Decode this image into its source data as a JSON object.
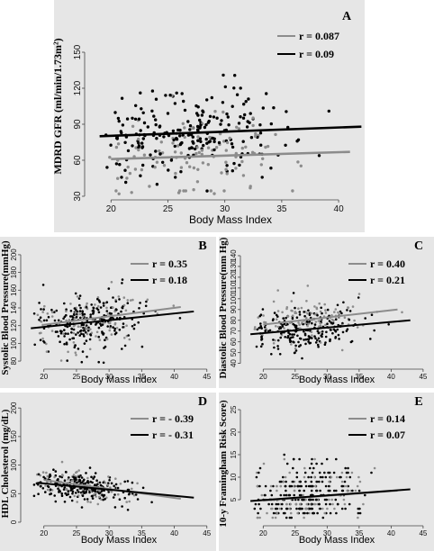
{
  "chart_data": [
    {
      "type": "scatter",
      "panel": "A",
      "ylabel": "MDRD GFR (ml/min/1.73m²)",
      "xlabel": "Body Mass Index",
      "xlim": [
        18,
        43
      ],
      "ylim": [
        30,
        180
      ],
      "xticks": [
        20,
        25,
        30,
        35,
        40
      ],
      "yticks": [
        30,
        60,
        90,
        120,
        150
      ],
      "grid": false,
      "background": "#e6e6e6",
      "legend_position": "top-right",
      "series": [
        {
          "name": "r = 0.087",
          "color": "#8c8c8c",
          "fit": [
            [
              20,
              61
            ],
            [
              41,
              67
            ]
          ]
        },
        {
          "name": "r = 0.09",
          "color": "#000000",
          "fit": [
            [
              19,
              80
            ],
            [
              42,
              88
            ]
          ]
        }
      ],
      "cloud": {
        "x_mean": 27,
        "x_sd": 4.8,
        "y_mean": 83,
        "y_sd": 19
      }
    },
    {
      "type": "scatter",
      "panel": "B",
      "ylabel": "Systolic Blood Pressure(mmHg)",
      "xlabel": "Body Mass Index",
      "xlim": [
        17,
        46
      ],
      "ylim": [
        75,
        205
      ],
      "xticks": [
        20,
        25,
        30,
        35,
        40,
        45
      ],
      "yticks": [
        80,
        100,
        120,
        140,
        160,
        180,
        200
      ],
      "grid": false,
      "background": "#e6e6e6",
      "legend_position": "top-right",
      "series": [
        {
          "name": "r = 0.35",
          "color": "#8c8c8c",
          "fit": [
            [
              20,
              121
            ],
            [
              41,
              141
            ]
          ]
        },
        {
          "name": "r = 0.18",
          "color": "#000000",
          "fit": [
            [
              18,
              117
            ],
            [
              43,
              136
            ]
          ]
        }
      ],
      "cloud": {
        "x_mean": 27,
        "x_sd": 5,
        "y_mean": 127,
        "y_sd": 18
      }
    },
    {
      "type": "scatter",
      "panel": "C",
      "ylabel": "Diastolic Blood Pressure(mm Hg)",
      "xlabel": "Body Mass Index",
      "xlim": [
        17,
        46
      ],
      "ylim": [
        38,
        145
      ],
      "xticks": [
        20,
        25,
        30,
        35,
        40,
        45
      ],
      "yticks": [
        40,
        50,
        60,
        70,
        80,
        90,
        100,
        110,
        120,
        130,
        140
      ],
      "grid": false,
      "background": "#e6e6e6",
      "legend_position": "top-right",
      "series": [
        {
          "name": "r = 0.40",
          "color": "#8c8c8c",
          "fit": [
            [
              20,
              76
            ],
            [
              41,
              90
            ]
          ]
        },
        {
          "name": "r = 0.21",
          "color": "#000000",
          "fit": [
            [
              18,
              67
            ],
            [
              43,
              80
            ]
          ]
        }
      ],
      "cloud": {
        "x_mean": 27,
        "x_sd": 5,
        "y_mean": 74,
        "y_sd": 11
      }
    },
    {
      "type": "scatter",
      "panel": "D",
      "ylabel": "HDL Cholesterol (mg/dL)",
      "xlabel": "Body Mass Index",
      "xlim": [
        17,
        46
      ],
      "ylim": [
        0,
        205
      ],
      "xticks": [
        20,
        25,
        30,
        35,
        40,
        45
      ],
      "yticks": [
        0,
        50,
        100,
        150,
        200
      ],
      "grid": false,
      "background": "#e6e6e6",
      "legend_position": "top-right",
      "series": [
        {
          "name": "r = - 0.39",
          "color": "#8c8c8c",
          "fit": [
            [
              20,
              74
            ],
            [
              41,
              41
            ]
          ]
        },
        {
          "name": "r = - 0.31",
          "color": "#000000",
          "fit": [
            [
              19,
              69
            ],
            [
              43,
              43
            ]
          ]
        }
      ],
      "cloud": {
        "x_mean": 26,
        "x_sd": 4.8,
        "y_mean": 62,
        "y_sd": 14
      }
    },
    {
      "type": "scatter",
      "panel": "E",
      "ylabel": "10-y Framingham Risk Score)",
      "xlabel": "Body Mass Index",
      "xlim": [
        17,
        46
      ],
      "ylim": [
        0,
        26
      ],
      "xticks": [
        20,
        25,
        30,
        35,
        40,
        45
      ],
      "yticks": [
        5,
        10,
        15,
        20,
        25
      ],
      "grid": false,
      "background": "#e6e6e6",
      "legend_position": "top-right",
      "series": [
        {
          "name": "r = 0.14",
          "color": "#8c8c8c",
          "fit": [
            [
              20,
              4.8
            ],
            [
              41,
              7
            ]
          ]
        },
        {
          "name": "r = 0.07",
          "color": "#000000",
          "fit": [
            [
              18,
              4.7
            ],
            [
              43,
              7.3
            ]
          ]
        }
      ],
      "cloud": {
        "x_mean": 27,
        "x_sd": 5,
        "y_mean": 5,
        "y_sd": 4.5,
        "discrete": [
          1,
          2,
          3,
          4,
          5,
          6,
          7,
          8,
          9,
          10,
          11,
          12,
          13,
          14,
          15,
          16,
          17,
          18,
          20
        ]
      }
    }
  ]
}
